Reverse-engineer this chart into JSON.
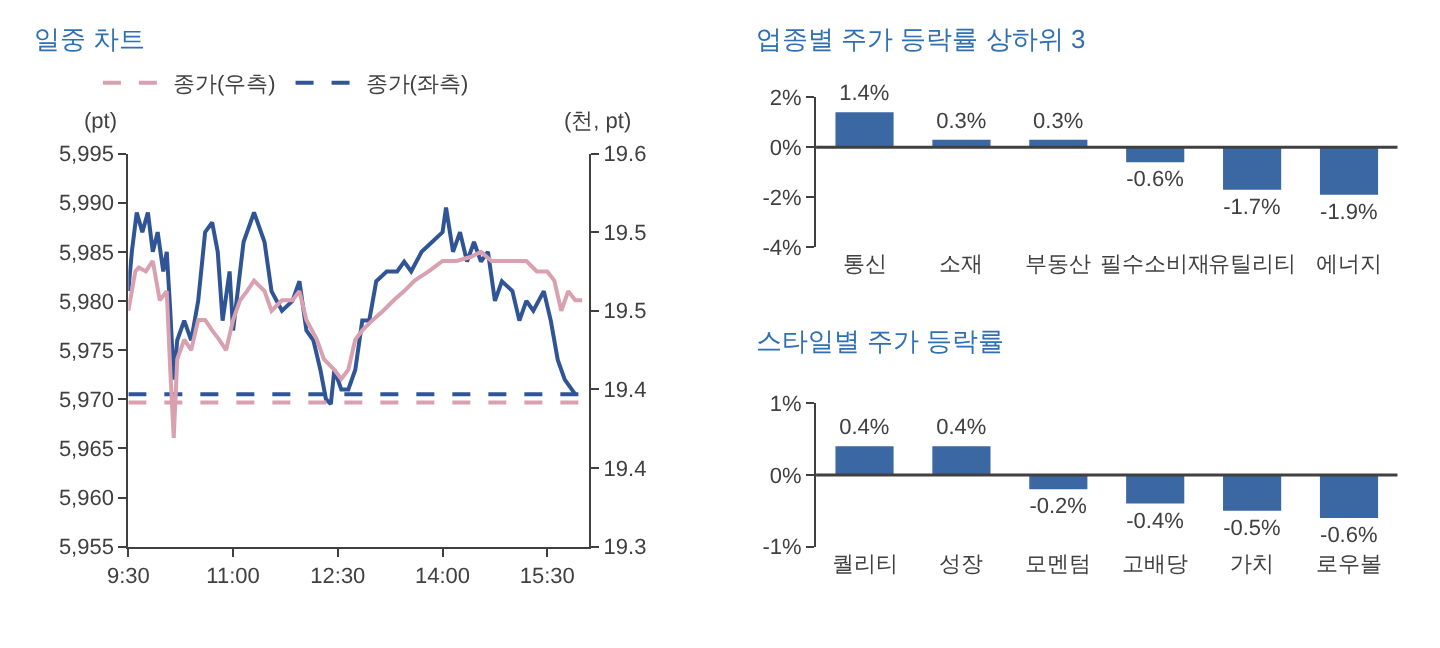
{
  "chart_data": [
    {
      "type": "line",
      "title": "일중 차트",
      "ylabel": "(pt)",
      "y2label": "(천, pt)",
      "legend": "top",
      "grid": false,
      "xlim": [
        9.5,
        16.1
      ],
      "xticks": [
        {
          "value": 9.5,
          "label": "9:30"
        },
        {
          "value": 11,
          "label": "11:00"
        },
        {
          "value": 12.5,
          "label": "12:30"
        },
        {
          "value": 14,
          "label": "14:00"
        },
        {
          "value": 15.5,
          "label": "15:30"
        }
      ],
      "ylim": [
        5955,
        5995
      ],
      "yticks": [
        {
          "value": 5955,
          "label": "5,955"
        },
        {
          "value": 5960,
          "label": "5,960"
        },
        {
          "value": 5965,
          "label": "5,965"
        },
        {
          "value": 5970,
          "label": "5,970"
        },
        {
          "value": 5975,
          "label": "5,975"
        },
        {
          "value": 5980,
          "label": "5,980"
        },
        {
          "value": 5985,
          "label": "5,985"
        },
        {
          "value": 5990,
          "label": "5,990"
        },
        {
          "value": 5995,
          "label": "5,995"
        }
      ],
      "y2lim": [
        19.3,
        19.6
      ],
      "y2ticks": [
        19.3,
        {
          "value": 19.36,
          "label": "19.4"
        },
        {
          "value": 19.42,
          "label": "19.4"
        },
        {
          "value": 19.48,
          "label": "19.5"
        },
        {
          "value": 19.54,
          "label": "19.5"
        },
        19.6
      ],
      "series": [
        {
          "color": "#d9a0b0",
          "axis": "y2",
          "line_style": "solid",
          "x": [
            9.5,
            9.6,
            9.65,
            9.75,
            9.85,
            9.95,
            10.05,
            10.1,
            10.15,
            10.2,
            10.3,
            10.4,
            10.5,
            10.6,
            10.7,
            10.8,
            10.9,
            11.0,
            11.1,
            11.2,
            11.3,
            11.45,
            11.55,
            11.7,
            11.85,
            11.95,
            12.05,
            12.2,
            12.3,
            12.45,
            12.55,
            12.65,
            12.75,
            12.85,
            13.0,
            13.15,
            13.3,
            13.45,
            13.6,
            13.8,
            14.0,
            14.2,
            14.4,
            14.55,
            14.7,
            14.85,
            15.0,
            15.2,
            15.35,
            15.5,
            15.6,
            15.7,
            15.8,
            15.9,
            16.0
          ],
          "values": [
            19.48,
            19.51,
            19.513,
            19.51,
            19.518,
            19.488,
            19.495,
            19.435,
            19.383,
            19.443,
            19.458,
            19.45,
            19.473,
            19.473,
            19.465,
            19.458,
            19.45,
            19.473,
            19.488,
            19.495,
            19.503,
            19.495,
            19.48,
            19.488,
            19.488,
            19.495,
            19.473,
            19.458,
            19.443,
            19.435,
            19.428,
            19.435,
            19.458,
            19.465,
            19.473,
            19.48,
            19.488,
            19.495,
            19.503,
            19.51,
            19.518,
            19.518,
            19.521,
            19.525,
            19.518,
            19.518,
            19.518,
            19.518,
            19.51,
            19.51,
            19.503,
            19.48,
            19.495,
            19.488,
            19.488
          ]
        },
        {
          "color": "#2f5597",
          "axis": "y",
          "line_style": "solid",
          "x": [
            9.5,
            9.55,
            9.62,
            9.7,
            9.78,
            9.85,
            9.92,
            10.0,
            10.05,
            10.1,
            10.15,
            10.2,
            10.3,
            10.4,
            10.5,
            10.6,
            10.7,
            10.78,
            10.85,
            10.95,
            11.0,
            11.05,
            11.15,
            11.3,
            11.45,
            11.55,
            11.7,
            11.85,
            11.95,
            12.05,
            12.15,
            12.25,
            12.33,
            12.4,
            12.45,
            12.55,
            12.65,
            12.75,
            12.85,
            12.95,
            13.05,
            13.2,
            13.35,
            13.45,
            13.55,
            13.7,
            13.85,
            14.0,
            14.05,
            14.15,
            14.25,
            14.35,
            14.45,
            14.55,
            14.65,
            14.75,
            14.85,
            15.0,
            15.1,
            15.2,
            15.3,
            15.45,
            15.55,
            15.65,
            15.75,
            15.85,
            15.9
          ],
          "values": [
            5981,
            5985,
            5989,
            5987,
            5989,
            5985,
            5987,
            5983,
            5985,
            5979,
            5972,
            5976,
            5978,
            5976,
            5980,
            5987,
            5988,
            5985,
            5978,
            5983,
            5977,
            5980,
            5986,
            5989,
            5986,
            5981,
            5979,
            5980,
            5982,
            5977,
            5976,
            5973,
            5970,
            5969.5,
            5973,
            5971,
            5971,
            5973,
            5978,
            5978,
            5982,
            5983,
            5983,
            5984,
            5983,
            5985,
            5986,
            5987,
            5989.5,
            5985,
            5987,
            5984,
            5986,
            5984,
            5985,
            5980,
            5982,
            5981,
            5978,
            5980,
            5979,
            5981,
            5978,
            5974,
            5972,
            5971,
            5970.5
          ]
        },
        {
          "name": "종가(우측)",
          "color": "#d9a0b0",
          "axis": "y2",
          "line_style": "dashed",
          "x": [
            9.5,
            16.1
          ],
          "values": [
            19.41,
            19.41
          ]
        },
        {
          "name": "종가(좌측)",
          "color": "#2f5597",
          "axis": "y",
          "line_style": "dashed",
          "x": [
            9.5,
            16.1
          ],
          "values": [
            5970.5,
            5970.5
          ]
        }
      ]
    },
    {
      "type": "bar",
      "title": "업종별 주가 등락률 상하위 3",
      "grid": false,
      "legend": false,
      "categories": [
        "통신",
        "소재",
        "부동산",
        "필수소비재",
        "유틸리티",
        "에너지"
      ],
      "ref_lines": [
        {
          "axis": "y",
          "value": 0,
          "color": "#404040"
        }
      ],
      "values": [
        1.4,
        0.3,
        0.3,
        -0.6,
        -1.7,
        -1.9
      ],
      "value_labels": [
        "1.4%",
        "0.3%",
        "0.3%",
        "-0.6%",
        "-1.7%",
        "-1.9%"
      ],
      "color": "#3b67a3",
      "ylim": [
        -4,
        2
      ],
      "yticks": [
        {
          "value": -4,
          "label": "-4%"
        },
        {
          "value": -2,
          "label": "-2%"
        },
        {
          "value": 0,
          "label": "0%"
        },
        {
          "value": 2,
          "label": "2%"
        }
      ]
    },
    {
      "type": "bar",
      "title": "스타일별 주가 등락률",
      "grid": false,
      "legend": false,
      "categories": [
        "퀄리티",
        "성장",
        "모멘텀",
        "고배당",
        "가치",
        "로우볼"
      ],
      "ref_lines": [
        {
          "axis": "y",
          "value": 0,
          "color": "#404040"
        }
      ],
      "values": [
        0.4,
        0.4,
        -0.2,
        -0.4,
        -0.5,
        -0.6
      ],
      "value_labels": [
        "0.4%",
        "0.4%",
        "-0.2%",
        "-0.4%",
        "-0.5%",
        "-0.6%"
      ],
      "color": "#3b67a3",
      "ylim": [
        -1,
        1
      ],
      "yticks": [
        {
          "value": -1,
          "label": "-1%"
        },
        {
          "value": 0,
          "label": "0%"
        },
        {
          "value": 1,
          "label": "1%"
        }
      ]
    }
  ]
}
